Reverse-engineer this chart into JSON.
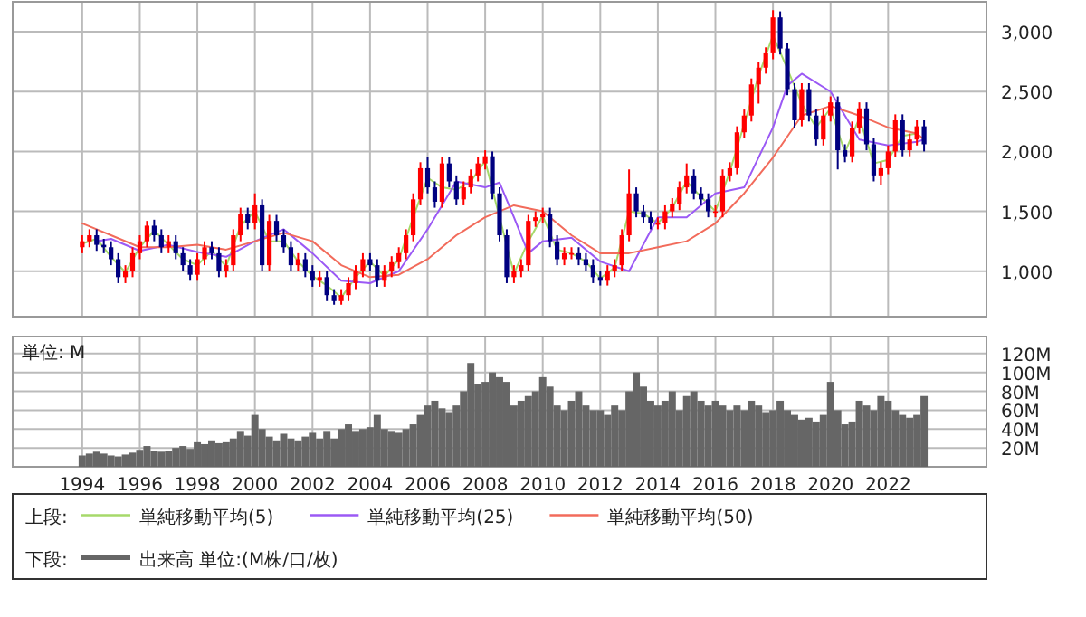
{
  "chart_data": [
    {
      "type": "candlestick",
      "legend_title": "上段:",
      "legend": "bottom",
      "grid": true,
      "tick_labels": "y",
      "colors": [
        "#ff0000",
        "#ff0000",
        "#000080",
        "#000080",
        "#000080",
        "#000080",
        "#ff0000",
        "#ff0000",
        "#ff0000",
        "#ff0000",
        "#000080",
        "#000080",
        "#ff0000",
        "#000080",
        "#000080",
        "#000080",
        "#ff0000",
        "#ff0000",
        "#000080",
        "#000080",
        "#ff0000",
        "#ff0000",
        "#ff0000",
        "#000080",
        "#ff0000",
        "#000080",
        "#ff0000",
        "#000080",
        "#000080",
        "#000080",
        "#ff0000",
        "#000080",
        "#000080",
        "#ff0000",
        "#000080",
        "#000080",
        "#ff0000",
        "#ff0000",
        "#ff0000",
        "#ff0000",
        "#000080",
        "#000080",
        "#ff0000",
        "#ff0000",
        "#ff0000",
        "#ff0000",
        "#ff0000",
        "#ff0000",
        "#000080",
        "#000080",
        "#ff0000",
        "#000080",
        "#000080",
        "#ff0000",
        "#ff0000",
        "#ff0000",
        "#ff0000",
        "#000080",
        "#000080",
        "#000080",
        "#ff0000",
        "#ff0000",
        "#ff0000",
        "#ff0000",
        "#ff0000",
        "#000080",
        "#000080",
        "#ff0000",
        "#ff0000",
        "#000080",
        "#000080",
        "#000080",
        "#000080",
        "#ff0000",
        "#ff0000",
        "#ff0000",
        "#ff0000",
        "#000080",
        "#000080",
        "#000080",
        "#ff0000",
        "#ff0000",
        "#ff0000",
        "#ff0000",
        "#ff0000",
        "#000080",
        "#000080",
        "#000080",
        "#ff0000",
        "#ff0000",
        "#ff0000",
        "#ff0000",
        "#ff0000",
        "#ff0000",
        "#ff0000",
        "#ff0000",
        "#ff0000",
        "#000080",
        "#000080",
        "#000080",
        "#ff0000",
        "#000080",
        "#000080",
        "#ff0000",
        "#ff0000",
        "#000080",
        "#000080",
        "#ff0000",
        "#ff0000",
        "#000080",
        "#000080",
        "#ff0000",
        "#ff0000",
        "#ff0000",
        "#000080",
        "#ff0000",
        "#ff0000",
        "#000080"
      ],
      "x": [
        "1994-01",
        "1994-04",
        "1994-07",
        "1994-10",
        "1995-01",
        "1995-04",
        "1995-07",
        "1995-10",
        "1996-01",
        "1996-04",
        "1996-07",
        "1996-10",
        "1997-01",
        "1997-04",
        "1997-07",
        "1997-10",
        "1998-01",
        "1998-04",
        "1998-07",
        "1998-10",
        "1999-01",
        "1999-04",
        "1999-07",
        "1999-10",
        "2000-01",
        "2000-04",
        "2000-07",
        "2000-10",
        "2001-01",
        "2001-04",
        "2001-07",
        "2001-10",
        "2002-01",
        "2002-04",
        "2002-07",
        "2002-10",
        "2003-01",
        "2003-04",
        "2003-07",
        "2003-10",
        "2004-01",
        "2004-04",
        "2004-07",
        "2004-10",
        "2005-01",
        "2005-04",
        "2005-07",
        "2005-10",
        "2006-01",
        "2006-04",
        "2006-07",
        "2006-10",
        "2007-01",
        "2007-04",
        "2007-07",
        "2007-10",
        "2008-01",
        "2008-04",
        "2008-07",
        "2008-10",
        "2009-01",
        "2009-04",
        "2009-07",
        "2009-10",
        "2010-01",
        "2010-04",
        "2010-07",
        "2010-10",
        "2011-01",
        "2011-04",
        "2011-07",
        "2011-10",
        "2012-01",
        "2012-04",
        "2012-07",
        "2012-10",
        "2013-01",
        "2013-04",
        "2013-07",
        "2013-10",
        "2014-01",
        "2014-04",
        "2014-07",
        "2014-10",
        "2015-01",
        "2015-04",
        "2015-07",
        "2015-10",
        "2016-01",
        "2016-04",
        "2016-07",
        "2016-10",
        "2017-01",
        "2017-04",
        "2017-07",
        "2017-10",
        "2018-01",
        "2018-04",
        "2018-07",
        "2018-10",
        "2019-01",
        "2019-04",
        "2019-07",
        "2019-10",
        "2020-01",
        "2020-04",
        "2020-07",
        "2020-10",
        "2021-01",
        "2021-04",
        "2021-07",
        "2021-10",
        "2022-01",
        "2022-04",
        "2022-07",
        "2022-10",
        "2023-01",
        "2023-04"
      ],
      "ohlc": [
        [
          1200,
          1300,
          1150,
          1250
        ],
        [
          1250,
          1350,
          1200,
          1300
        ],
        [
          1300,
          1350,
          1170,
          1220
        ],
        [
          1220,
          1270,
          1150,
          1200
        ],
        [
          1200,
          1250,
          1050,
          1100
        ],
        [
          1100,
          1150,
          900,
          950
        ],
        [
          950,
          1050,
          900,
          1000
        ],
        [
          1000,
          1200,
          950,
          1150
        ],
        [
          1150,
          1300,
          1100,
          1250
        ],
        [
          1250,
          1420,
          1200,
          1380
        ],
        [
          1380,
          1430,
          1250,
          1300
        ],
        [
          1300,
          1350,
          1150,
          1200
        ],
        [
          1200,
          1300,
          1150,
          1250
        ],
        [
          1250,
          1300,
          1100,
          1150
        ],
        [
          1150,
          1200,
          1000,
          1050
        ],
        [
          1050,
          1100,
          920,
          970
        ],
        [
          970,
          1150,
          920,
          1100
        ],
        [
          1100,
          1250,
          1050,
          1200
        ],
        [
          1200,
          1250,
          1100,
          1150
        ],
        [
          1150,
          1200,
          950,
          1000
        ],
        [
          1000,
          1100,
          950,
          1050
        ],
        [
          1050,
          1350,
          1000,
          1300
        ],
        [
          1300,
          1530,
          1250,
          1480
        ],
        [
          1480,
          1530,
          1350,
          1400
        ],
        [
          1400,
          1650,
          1350,
          1550
        ],
        [
          1550,
          1600,
          1000,
          1050
        ],
        [
          1050,
          1470,
          1000,
          1420
        ],
        [
          1420,
          1470,
          1250,
          1300
        ],
        [
          1300,
          1350,
          1150,
          1200
        ],
        [
          1200,
          1250,
          1000,
          1050
        ],
        [
          1050,
          1150,
          1000,
          1100
        ],
        [
          1100,
          1150,
          950,
          1000
        ],
        [
          1000,
          1050,
          870,
          920
        ],
        [
          920,
          1000,
          870,
          950
        ],
        [
          950,
          1000,
          750,
          800
        ],
        [
          800,
          850,
          720,
          750
        ],
        [
          750,
          850,
          720,
          800
        ],
        [
          800,
          950,
          750,
          900
        ],
        [
          900,
          1050,
          850,
          1000
        ],
        [
          1000,
          1150,
          950,
          1100
        ],
        [
          1100,
          1150,
          1000,
          1050
        ],
        [
          1050,
          1100,
          870,
          920
        ],
        [
          920,
          1050,
          870,
          1000
        ],
        [
          1000,
          1125,
          950,
          1075
        ],
        [
          1075,
          1200,
          1025,
          1150
        ],
        [
          1150,
          1350,
          1100,
          1300
        ],
        [
          1300,
          1650,
          1250,
          1600
        ],
        [
          1600,
          1910,
          1550,
          1860
        ],
        [
          1860,
          1950,
          1650,
          1700
        ],
        [
          1700,
          1750,
          1530,
          1580
        ],
        [
          1580,
          1950,
          1530,
          1900
        ],
        [
          1900,
          1950,
          1700,
          1750
        ],
        [
          1750,
          1800,
          1550,
          1600
        ],
        [
          1600,
          1750,
          1550,
          1700
        ],
        [
          1700,
          1850,
          1650,
          1800
        ],
        [
          1800,
          1950,
          1750,
          1900
        ],
        [
          1900,
          2010,
          1850,
          1960
        ],
        [
          1960,
          2000,
          1600,
          1650
        ],
        [
          1650,
          1700,
          1250,
          1300
        ],
        [
          1300,
          1350,
          900,
          950
        ],
        [
          950,
          1050,
          900,
          1000
        ],
        [
          1000,
          1100,
          950,
          1050
        ],
        [
          1050,
          1470,
          1000,
          1420
        ],
        [
          1420,
          1500,
          1370,
          1450
        ],
        [
          1450,
          1530,
          1400,
          1480
        ],
        [
          1480,
          1530,
          1200,
          1250
        ],
        [
          1250,
          1300,
          1050,
          1100
        ],
        [
          1100,
          1200,
          1050,
          1150
        ],
        [
          1150,
          1200,
          1100,
          1150
        ],
        [
          1150,
          1200,
          1050,
          1100
        ],
        [
          1100,
          1150,
          1000,
          1050
        ],
        [
          1050,
          1100,
          900,
          950
        ],
        [
          950,
          1000,
          880,
          920
        ],
        [
          920,
          1050,
          880,
          1000
        ],
        [
          1000,
          1100,
          950,
          1050
        ],
        [
          1050,
          1350,
          1000,
          1300
        ],
        [
          1300,
          1850,
          1250,
          1650
        ],
        [
          1650,
          1700,
          1450,
          1500
        ],
        [
          1500,
          1550,
          1400,
          1450
        ],
        [
          1450,
          1500,
          1350,
          1400
        ],
        [
          1400,
          1450,
          1350,
          1400
        ],
        [
          1400,
          1550,
          1350,
          1500
        ],
        [
          1500,
          1610,
          1450,
          1560
        ],
        [
          1560,
          1750,
          1510,
          1700
        ],
        [
          1700,
          1900,
          1650,
          1800
        ],
        [
          1800,
          1850,
          1600,
          1650
        ],
        [
          1650,
          1700,
          1550,
          1600
        ],
        [
          1600,
          1650,
          1450,
          1500
        ],
        [
          1500,
          1550,
          1450,
          1500
        ],
        [
          1500,
          1850,
          1450,
          1800
        ],
        [
          1800,
          1910,
          1750,
          1860
        ],
        [
          1860,
          2210,
          1810,
          2160
        ],
        [
          2160,
          2350,
          2110,
          2300
        ],
        [
          2300,
          2610,
          2250,
          2560
        ],
        [
          2560,
          2750,
          2400,
          2700
        ],
        [
          2700,
          2870,
          2650,
          2820
        ],
        [
          2820,
          3180,
          2770,
          3120
        ],
        [
          3120,
          3170,
          2810,
          2860
        ],
        [
          2860,
          2910,
          2470,
          2520
        ],
        [
          2520,
          2570,
          2200,
          2260
        ],
        [
          2260,
          2570,
          2210,
          2520
        ],
        [
          2520,
          2570,
          2250,
          2300
        ],
        [
          2300,
          2350,
          2050,
          2100
        ],
        [
          2100,
          2350,
          2050,
          2300
        ],
        [
          2300,
          2460,
          2250,
          2410
        ],
        [
          2410,
          2460,
          1850,
          2010
        ],
        [
          2010,
          2060,
          1910,
          1960
        ],
        [
          1960,
          2250,
          1910,
          2200
        ],
        [
          2200,
          2410,
          2150,
          2360
        ],
        [
          2360,
          2410,
          2010,
          2060
        ],
        [
          2060,
          2110,
          1750,
          1800
        ],
        [
          1800,
          1910,
          1720,
          1860
        ],
        [
          1860,
          2050,
          1810,
          2000
        ],
        [
          2000,
          2310,
          1950,
          2260
        ],
        [
          2260,
          2310,
          1960,
          2010
        ],
        [
          2010,
          2150,
          1960,
          2100
        ],
        [
          2100,
          2260,
          2050,
          2210
        ],
        [
          2210,
          2260,
          2000,
          2060
        ]
      ],
      "series": [
        {
          "type": "line",
          "name": "単純移動平均(5)",
          "color": "#a6d96a",
          "x": [
            "1994-01",
            "1994-07",
            "1995-01",
            "1995-07",
            "1996-01",
            "1996-07",
            "1997-01",
            "1997-07",
            "1998-01",
            "1998-07",
            "1999-01",
            "1999-07",
            "2000-01",
            "2000-07",
            "2001-01",
            "2001-07",
            "2002-01",
            "2002-07",
            "2003-01",
            "2003-07",
            "2004-01",
            "2004-07",
            "2005-01",
            "2005-07",
            "2006-01",
            "2006-07",
            "2007-01",
            "2007-07",
            "2008-01",
            "2008-07",
            "2009-01",
            "2009-07",
            "2010-01",
            "2010-07",
            "2011-01",
            "2011-07",
            "2012-01",
            "2012-07",
            "2013-01",
            "2013-07",
            "2014-01",
            "2014-07",
            "2015-01",
            "2015-07",
            "2016-01",
            "2016-07",
            "2017-01",
            "2017-07",
            "2018-01",
            "2018-07",
            "2019-01",
            "2019-07",
            "2020-01",
            "2020-07",
            "2021-01",
            "2021-07",
            "2022-01",
            "2022-07",
            "2023-01"
          ],
          "values": [
            1230,
            1270,
            1120,
            990,
            1200,
            1340,
            1220,
            1100,
            1050,
            1170,
            1040,
            1380,
            1500,
            1250,
            1250,
            1080,
            960,
            880,
            780,
            950,
            1080,
            960,
            1100,
            1450,
            1780,
            1700,
            1680,
            1750,
            1920,
            1450,
            980,
            1250,
            1460,
            1180,
            1150,
            1080,
            940,
            1030,
            1500,
            1480,
            1400,
            1530,
            1750,
            1620,
            1500,
            1830,
            2230,
            2630,
            2970,
            2690,
            2400,
            2200,
            2360,
            1990,
            2280,
            1900,
            1930,
            2130,
            2150
          ]
        },
        {
          "type": "line",
          "name": "単純移動平均(25)",
          "color": "#9b59f5",
          "x": [
            "1994-07",
            "1995-01",
            "1996-01",
            "1997-01",
            "1998-01",
            "1999-01",
            "2000-01",
            "2001-01",
            "2002-01",
            "2003-01",
            "2004-01",
            "2005-01",
            "2006-01",
            "2007-01",
            "2008-01",
            "2008-07",
            "2009-01",
            "2009-07",
            "2010-01",
            "2011-01",
            "2012-01",
            "2013-01",
            "2014-01",
            "2015-01",
            "2016-01",
            "2017-01",
            "2018-01",
            "2018-07",
            "2019-01",
            "2020-01",
            "2021-01",
            "2022-01",
            "2023-01",
            "2023-04"
          ],
          "values": [
            1250,
            1270,
            1170,
            1220,
            1160,
            1120,
            1250,
            1350,
            1150,
            920,
            900,
            1000,
            1350,
            1750,
            1700,
            1740,
            1450,
            1150,
            1250,
            1280,
            1080,
            1000,
            1450,
            1450,
            1650,
            1700,
            2200,
            2550,
            2650,
            2500,
            2100,
            2050,
            2080,
            2100
          ]
        },
        {
          "type": "line",
          "name": "単純移動平均(50)",
          "color": "#f26b5b",
          "x": [
            "1994-01",
            "1995-01",
            "1996-01",
            "1997-01",
            "1998-01",
            "1999-01",
            "2000-01",
            "2001-01",
            "2002-01",
            "2003-01",
            "2004-01",
            "2005-01",
            "2006-01",
            "2007-01",
            "2008-01",
            "2009-01",
            "2010-01",
            "2011-01",
            "2012-01",
            "2013-01",
            "2014-01",
            "2015-01",
            "2016-01",
            "2017-01",
            "2018-01",
            "2019-01",
            "2020-01",
            "2021-01",
            "2022-01",
            "2023-01",
            "2023-04"
          ],
          "values": [
            1400,
            1300,
            1200,
            1200,
            1220,
            1180,
            1250,
            1320,
            1250,
            1050,
            950,
            970,
            1100,
            1300,
            1450,
            1550,
            1500,
            1300,
            1150,
            1150,
            1200,
            1250,
            1400,
            1650,
            1950,
            2300,
            2380,
            2300,
            2200,
            2150,
            2100
          ]
        }
      ],
      "xlim": [
        "1991-08",
        "2025-06"
      ],
      "xticks": [
        "1994",
        "1996",
        "1998",
        "2000",
        "2002",
        "2004",
        "2006",
        "2008",
        "2010",
        "2012",
        "2014",
        "2016",
        "2018",
        "2020",
        "2022"
      ],
      "ylim": [
        620,
        3250
      ],
      "yticks": [
        {
          "value": 1000,
          "label": "1,000"
        },
        {
          "value": 1500,
          "label": "1,500"
        },
        {
          "value": 2000,
          "label": "2,000"
        },
        {
          "value": 2500,
          "label": "2,500"
        },
        {
          "value": 3000,
          "label": "3,000"
        }
      ]
    },
    {
      "type": "bar",
      "legend_title": "下段:",
      "legend": "bottom",
      "grid": true,
      "annotations": [
        "単位: M"
      ],
      "x": [
        "1994-01",
        "1994-04",
        "1994-07",
        "1994-10",
        "1995-01",
        "1995-04",
        "1995-07",
        "1995-10",
        "1996-01",
        "1996-04",
        "1996-07",
        "1996-10",
        "1997-01",
        "1997-04",
        "1997-07",
        "1997-10",
        "1998-01",
        "1998-04",
        "1998-07",
        "1998-10",
        "1999-01",
        "1999-04",
        "1999-07",
        "1999-10",
        "2000-01",
        "2000-04",
        "2000-07",
        "2000-10",
        "2001-01",
        "2001-04",
        "2001-07",
        "2001-10",
        "2002-01",
        "2002-04",
        "2002-07",
        "2002-10",
        "2003-01",
        "2003-04",
        "2003-07",
        "2003-10",
        "2004-01",
        "2004-04",
        "2004-07",
        "2004-10",
        "2005-01",
        "2005-04",
        "2005-07",
        "2005-10",
        "2006-01",
        "2006-04",
        "2006-07",
        "2006-10",
        "2007-01",
        "2007-04",
        "2007-07",
        "2007-10",
        "2008-01",
        "2008-04",
        "2008-07",
        "2008-10",
        "2009-01",
        "2009-04",
        "2009-07",
        "2009-10",
        "2010-01",
        "2010-04",
        "2010-07",
        "2010-10",
        "2011-01",
        "2011-04",
        "2011-07",
        "2011-10",
        "2012-01",
        "2012-04",
        "2012-07",
        "2012-10",
        "2013-01",
        "2013-04",
        "2013-07",
        "2013-10",
        "2014-01",
        "2014-04",
        "2014-07",
        "2014-10",
        "2015-01",
        "2015-04",
        "2015-07",
        "2015-10",
        "2016-01",
        "2016-04",
        "2016-07",
        "2016-10",
        "2017-01",
        "2017-04",
        "2017-07",
        "2017-10",
        "2018-01",
        "2018-04",
        "2018-07",
        "2018-10",
        "2019-01",
        "2019-04",
        "2019-07",
        "2019-10",
        "2020-01",
        "2020-04",
        "2020-07",
        "2020-10",
        "2021-01",
        "2021-04",
        "2021-07",
        "2021-10",
        "2022-01",
        "2022-04",
        "2022-07",
        "2022-10",
        "2023-01",
        "2023-04"
      ],
      "series": [
        {
          "name": "出来高 単位:(M株/口/枚)",
          "color": "#666666",
          "values": [
            12,
            14,
            16,
            14,
            12,
            11,
            13,
            15,
            18,
            22,
            17,
            16,
            17,
            20,
            22,
            19,
            26,
            24,
            28,
            25,
            26,
            30,
            38,
            33,
            55,
            40,
            32,
            28,
            35,
            30,
            28,
            32,
            36,
            30,
            38,
            30,
            40,
            45,
            38,
            40,
            42,
            55,
            40,
            38,
            36,
            40,
            45,
            55,
            65,
            70,
            62,
            58,
            65,
            80,
            110,
            88,
            90,
            100,
            95,
            90,
            65,
            70,
            75,
            80,
            95,
            85,
            65,
            60,
            70,
            80,
            65,
            60,
            60,
            55,
            65,
            60,
            80,
            100,
            85,
            70,
            65,
            70,
            80,
            60,
            75,
            80,
            70,
            65,
            70,
            65,
            60,
            65,
            60,
            70,
            65,
            58,
            60,
            70,
            60,
            55,
            50,
            52,
            48,
            55,
            90,
            60,
            45,
            48,
            70,
            65,
            60,
            75,
            70,
            60,
            55,
            52,
            55,
            75
          ]
        }
      ],
      "xlim": [
        "1991-08",
        "2025-06"
      ],
      "xticks": [
        "1994",
        "1996",
        "1998",
        "2000",
        "2002",
        "2004",
        "2006",
        "2008",
        "2010",
        "2012",
        "2014",
        "2016",
        "2018",
        "2020",
        "2022"
      ],
      "ylim": [
        0,
        138
      ],
      "yticks": [
        {
          "value": 20,
          "label": "20M"
        },
        {
          "value": 40,
          "label": "40M"
        },
        {
          "value": 60,
          "label": "60M"
        },
        {
          "value": 80,
          "label": "80M"
        },
        {
          "value": 100,
          "label": "100M"
        },
        {
          "value": 120,
          "label": "120M"
        }
      ]
    }
  ]
}
